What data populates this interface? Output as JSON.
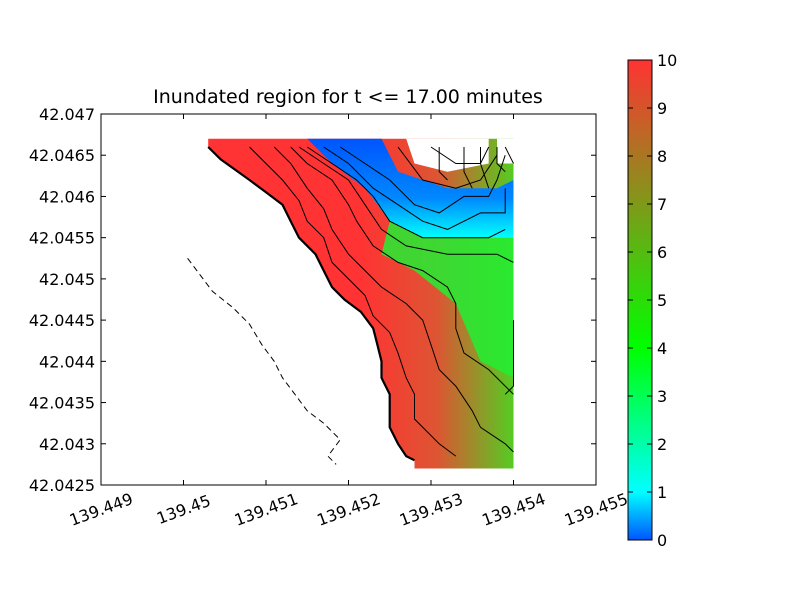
{
  "chart_data": {
    "type": "heatmap",
    "title": "Inundated region for t <= 17.00 minutes",
    "xlabel": "",
    "ylabel": "",
    "xlim": [
      139.449,
      139.455
    ],
    "ylim": [
      42.0425,
      42.047
    ],
    "x_ticks": [
      "139.449",
      "139.45",
      "139.451",
      "139.452",
      "139.453",
      "139.454",
      "139.455"
    ],
    "y_ticks": [
      "42.0425",
      "42.043",
      "42.0435",
      "42.044",
      "42.0445",
      "42.045",
      "42.0455",
      "42.046",
      "42.0465",
      "42.047"
    ],
    "x_tick_rotation": -20,
    "colorbar": {
      "min": 0,
      "max": 10,
      "ticks": [
        "0",
        "1",
        "2",
        "3",
        "4",
        "5",
        "6",
        "7",
        "8",
        "9",
        "10"
      ],
      "colors": [
        "#0055ff",
        "#00ffff",
        "#00ff00",
        "#ff3333"
      ]
    },
    "grid": false,
    "shoreline_dashed": [
      [
        139.45005,
        42.04525
      ],
      [
        139.4502,
        42.04505
      ],
      [
        139.45035,
        42.04485
      ],
      [
        139.4506,
        42.04465
      ],
      [
        139.4508,
        42.04445
      ],
      [
        139.45095,
        42.0442
      ],
      [
        139.4511,
        42.044
      ],
      [
        139.4512,
        42.0438
      ],
      [
        139.45135,
        42.0436
      ],
      [
        139.4515,
        42.0434
      ],
      [
        139.4517,
        42.04325
      ],
      [
        139.4519,
        42.04305
      ],
      [
        139.45175,
        42.04285
      ],
      [
        139.45185,
        42.04275
      ]
    ],
    "inundation_line": [
      [
        139.4503,
        42.0466
      ],
      [
        139.45045,
        42.04645
      ],
      [
        139.4508,
        42.0462
      ],
      [
        139.451,
        42.04605
      ],
      [
        139.4512,
        42.0459
      ],
      [
        139.4513,
        42.0457
      ],
      [
        139.4514,
        42.0455
      ],
      [
        139.4516,
        42.0453
      ],
      [
        139.4517,
        42.0451
      ],
      [
        139.4518,
        42.0449
      ],
      [
        139.45195,
        42.04475
      ],
      [
        139.45215,
        42.0446
      ],
      [
        139.4523,
        42.0444
      ],
      [
        139.45235,
        42.0442
      ],
      [
        139.4524,
        42.044
      ],
      [
        139.4524,
        42.0438
      ],
      [
        139.4525,
        42.0436
      ],
      [
        139.4525,
        42.0434
      ],
      [
        139.4525,
        42.0432
      ],
      [
        139.4526,
        42.043
      ],
      [
        139.4527,
        42.04285
      ],
      [
        139.4528,
        42.0428
      ]
    ],
    "contours": [
      [
        [
          139.4508,
          42.0466
        ],
        [
          139.451,
          42.0464
        ],
        [
          139.4512,
          42.0462
        ],
        [
          139.4514,
          42.04595
        ],
        [
          139.4515,
          42.0457
        ],
        [
          139.4517,
          42.0455
        ],
        [
          139.4518,
          42.0452
        ],
        [
          139.452,
          42.045
        ],
        [
          139.4522,
          42.0448
        ],
        [
          139.4523,
          42.04455
        ],
        [
          139.4525,
          42.04435
        ],
        [
          139.4526,
          42.0441
        ],
        [
          139.4527,
          42.0438
        ],
        [
          139.4528,
          42.0436
        ],
        [
          139.4528,
          42.0433
        ],
        [
          139.4531,
          42.043
        ],
        [
          139.4533,
          42.04285
        ]
      ],
      [
        [
          139.4511,
          42.0466
        ],
        [
          139.4513,
          42.0464
        ],
        [
          139.4515,
          42.0461
        ],
        [
          139.4517,
          42.04585
        ],
        [
          139.4518,
          42.0456
        ],
        [
          139.452,
          42.0453
        ],
        [
          139.4522,
          42.0451
        ],
        [
          139.4524,
          42.0449
        ],
        [
          139.4527,
          42.0447
        ],
        [
          139.4529,
          42.0445
        ],
        [
          139.453,
          42.0442
        ],
        [
          139.4531,
          42.0439
        ],
        [
          139.4533,
          42.0437
        ],
        [
          139.4535,
          42.0434
        ],
        [
          139.4536,
          42.0432
        ],
        [
          139.4539,
          42.043
        ],
        [
          139.454,
          42.0429
        ]
      ],
      [
        [
          139.4513,
          42.0466
        ],
        [
          139.4515,
          42.0464
        ],
        [
          139.4518,
          42.0462
        ],
        [
          139.452,
          42.0459
        ],
        [
          139.4521,
          42.0457
        ],
        [
          139.4523,
          42.0454
        ],
        [
          139.4526,
          42.0452
        ],
        [
          139.4529,
          42.0451
        ],
        [
          139.4532,
          42.0449
        ],
        [
          139.4533,
          42.0447
        ],
        [
          139.4533,
          42.0444
        ],
        [
          139.4534,
          42.0441
        ],
        [
          139.4537,
          42.0439
        ],
        [
          139.4539,
          42.0437
        ],
        [
          139.454,
          42.0436
        ]
      ],
      [
        [
          139.4514,
          42.0466
        ],
        [
          139.4517,
          42.0464
        ],
        [
          139.452,
          42.0462
        ],
        [
          139.4522,
          42.0459
        ],
        [
          139.4524,
          42.0456
        ],
        [
          139.4527,
          42.0454
        ],
        [
          139.4532,
          42.0453
        ],
        [
          139.4538,
          42.0453
        ],
        [
          139.454,
          42.0452
        ]
      ],
      [
        [
          139.4515,
          42.0466
        ],
        [
          139.4518,
          42.0464
        ],
        [
          139.4521,
          42.0462
        ],
        [
          139.4523,
          42.046
        ],
        [
          139.4525,
          42.0457
        ],
        [
          139.4529,
          42.0455
        ],
        [
          139.4533,
          42.0455
        ],
        [
          139.4537,
          42.0455
        ],
        [
          139.4539,
          42.0456
        ]
      ],
      [
        [
          139.4517,
          42.0466
        ],
        [
          139.452,
          42.0464
        ],
        [
          139.4523,
          42.0461
        ],
        [
          139.4526,
          42.0459
        ],
        [
          139.4529,
          42.0457
        ],
        [
          139.4532,
          42.0456
        ],
        [
          139.4536,
          42.0458
        ],
        [
          139.4539,
          42.0458
        ],
        [
          139.4539,
          42.0461
        ]
      ],
      [
        [
          139.4519,
          42.0466
        ],
        [
          139.4522,
          42.0464
        ],
        [
          139.4525,
          42.0462
        ],
        [
          139.4528,
          42.0459
        ],
        [
          139.4531,
          42.0458
        ],
        [
          139.4534,
          42.046
        ],
        [
          139.4537,
          42.046
        ],
        [
          139.4538,
          42.0462
        ],
        [
          139.4539,
          42.0465
        ]
      ],
      [
        [
          139.4526,
          42.0466
        ],
        [
          139.4529,
          42.0462
        ],
        [
          139.4533,
          42.0461
        ],
        [
          139.4536,
          42.0462
        ],
        [
          139.4538,
          42.0465
        ]
      ],
      [
        [
          139.453,
          42.0466
        ],
        [
          139.4533,
          42.0464
        ],
        [
          139.4536,
          42.0464
        ],
        [
          139.4537,
          42.0466
        ]
      ],
      [
        [
          139.4531,
          42.0466
        ],
        [
          139.4531,
          42.0463
        ],
        [
          139.4532,
          42.0462
        ]
      ],
      [
        [
          139.4534,
          42.0466
        ],
        [
          139.4534,
          42.0463
        ],
        [
          139.4535,
          42.0461
        ]
      ],
      [
        [
          139.4536,
          42.0466
        ],
        [
          139.4536,
          42.0464
        ],
        [
          139.4537,
          42.0461
        ]
      ],
      [
        [
          139.4538,
          42.0466
        ],
        [
          139.4538,
          42.0464
        ],
        [
          139.4539,
          42.0463
        ]
      ],
      [
        [
          139.4539,
          42.0466
        ],
        [
          139.454,
          42.0464
        ]
      ],
      [
        [
          139.454,
          42.0445
        ],
        [
          139.454,
          42.044
        ],
        [
          139.454,
          42.0437
        ],
        [
          139.4539,
          42.0436
        ]
      ]
    ]
  }
}
